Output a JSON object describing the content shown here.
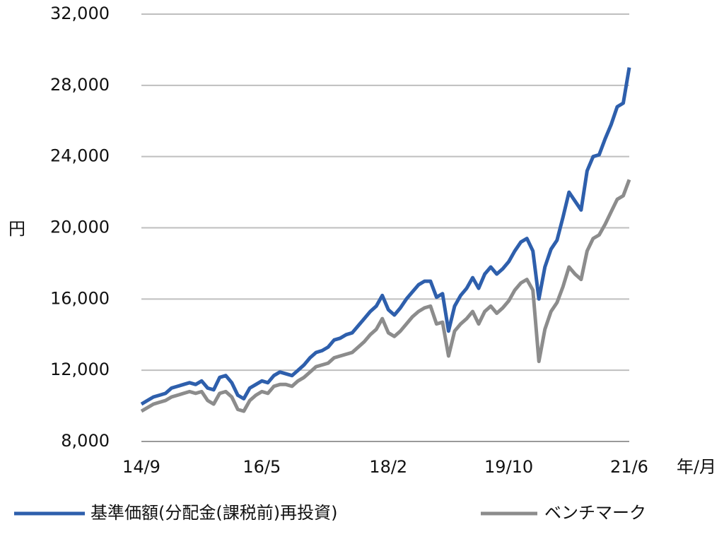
{
  "chart_data": {
    "type": "line",
    "y_label": "円",
    "x_label": "年/月",
    "categories": [
      "14/9",
      null,
      null,
      null,
      null,
      null,
      null,
      null,
      null,
      null,
      null,
      null,
      null,
      null,
      null,
      null,
      null,
      null,
      null,
      null,
      "16/5",
      null,
      null,
      null,
      null,
      null,
      null,
      null,
      null,
      null,
      null,
      null,
      null,
      null,
      null,
      null,
      null,
      null,
      null,
      null,
      null,
      "18/2",
      null,
      null,
      null,
      null,
      null,
      null,
      null,
      null,
      null,
      null,
      null,
      null,
      null,
      null,
      null,
      null,
      null,
      null,
      null,
      "19/10",
      null,
      null,
      null,
      null,
      null,
      null,
      null,
      null,
      null,
      null,
      null,
      null,
      null,
      null,
      null,
      null,
      null,
      null,
      null,
      "21/6"
    ],
    "series": [
      {
        "name": "基準価額(分配金(課税前)再投資)",
        "color": "#2e5fac",
        "values": [
          10100,
          10300,
          10500,
          10600,
          10700,
          11000,
          11100,
          11200,
          11300,
          11200,
          11400,
          11000,
          10900,
          11600,
          11700,
          11300,
          10600,
          10400,
          11000,
          11200,
          11400,
          11300,
          11700,
          11900,
          11800,
          11700,
          12000,
          12300,
          12700,
          13000,
          13100,
          13300,
          13700,
          13800,
          14000,
          14100,
          14500,
          14900,
          15300,
          15600,
          16200,
          15400,
          15100,
          15500,
          16000,
          16400,
          16800,
          17000,
          17000,
          16100,
          16300,
          14200,
          15600,
          16200,
          16600,
          17200,
          16600,
          17400,
          17800,
          17400,
          17700,
          18100,
          18700,
          19200,
          19400,
          18700,
          16000,
          17800,
          18800,
          19300,
          20600,
          22000,
          21500,
          21000,
          23200,
          24000,
          24100,
          25000,
          25800,
          26800,
          27000,
          29000
        ]
      },
      {
        "name": "ベンチマーク",
        "color": "#8c8c8c",
        "values": [
          9700,
          9900,
          10100,
          10200,
          10300,
          10500,
          10600,
          10700,
          10800,
          10700,
          10800,
          10300,
          10100,
          10700,
          10800,
          10500,
          9800,
          9700,
          10300,
          10600,
          10800,
          10700,
          11100,
          11200,
          11200,
          11100,
          11400,
          11600,
          11900,
          12200,
          12300,
          12400,
          12700,
          12800,
          12900,
          13000,
          13300,
          13600,
          14000,
          14300,
          14900,
          14100,
          13900,
          14200,
          14600,
          15000,
          15300,
          15500,
          15600,
          14600,
          14700,
          12800,
          14200,
          14600,
          14900,
          15300,
          14600,
          15300,
          15600,
          15200,
          15500,
          15900,
          16500,
          16900,
          17100,
          16500,
          12500,
          14300,
          15300,
          15800,
          16700,
          17800,
          17400,
          17100,
          18700,
          19400,
          19600,
          20200,
          20900,
          21600,
          21800,
          22700
        ]
      }
    ],
    "ylim": [
      8000,
      32000
    ],
    "yticks": [
      {
        "value": 8000,
        "label": "8,000"
      },
      {
        "value": 12000,
        "label": "12,000"
      },
      {
        "value": 16000,
        "label": "16,000"
      },
      {
        "value": 20000,
        "label": "20,000"
      },
      {
        "value": 24000,
        "label": "24,000"
      },
      {
        "value": 28000,
        "label": "28,000"
      },
      {
        "value": 32000,
        "label": "32,000"
      }
    ],
    "grid": true,
    "legend": "bottom"
  }
}
